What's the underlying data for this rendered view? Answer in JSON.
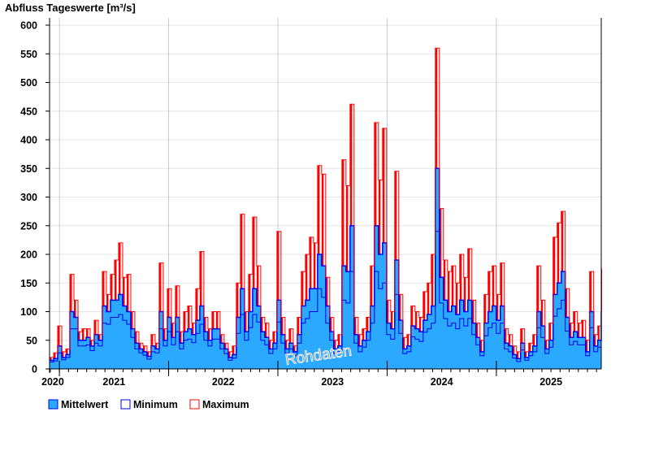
{
  "chart_data": {
    "type": "area",
    "title": "Abfluss Tageswerte [m³/s]",
    "xlabel": "",
    "ylabel": "Abfluss Tageswerte [m³/s]",
    "ylim": [
      0,
      610
    ],
    "yticks": [
      0,
      50,
      100,
      150,
      200,
      250,
      300,
      350,
      400,
      450,
      500,
      550,
      600
    ],
    "xlim": [
      2020.41,
      2025.46
    ],
    "x_start": 2020.41,
    "x_step_years": 0.03717,
    "xtick_labels": [
      {
        "label": "2020",
        "x": 2020.41
      },
      {
        "label": "2021",
        "x": 2021.0
      },
      {
        "label": "2022",
        "x": 2022.0
      },
      {
        "label": "2023",
        "x": 2023.0
      },
      {
        "label": "2024",
        "x": 2024.0
      },
      {
        "label": "2025",
        "x": 2025.0
      }
    ],
    "major_ticks": [
      2020.5,
      2021.5,
      2022.5,
      2023.5,
      2024.5
    ],
    "grid": true,
    "legend_position": "bottom-left",
    "watermark": "Rohdaten",
    "colors": {
      "mean_fill": "#2aa9ff",
      "mean_line": "#0000ff",
      "min": "#0000ee",
      "max": "#ff0000",
      "grid": "#e6e6e6"
    },
    "series": [
      {
        "name": "Mittelwert",
        "values": [
          15,
          18,
          40,
          20,
          25,
          100,
          90,
          50,
          50,
          55,
          40,
          60,
          50,
          110,
          100,
          120,
          120,
          130,
          110,
          100,
          70,
          45,
          35,
          30,
          22,
          40,
          35,
          100,
          50,
          90,
          55,
          90,
          45,
          65,
          70,
          60,
          85,
          110,
          65,
          50,
          70,
          70,
          45,
          35,
          20,
          25,
          90,
          140,
          65,
          100,
          140,
          110,
          65,
          55,
          35,
          45,
          120,
          60,
          35,
          45,
          30,
          60,
          110,
          120,
          140,
          140,
          200,
          180,
          110,
          65,
          35,
          40,
          180,
          170,
          250,
          60,
          40,
          50,
          65,
          110,
          250,
          200,
          220,
          80,
          70,
          190,
          85,
          35,
          40,
          75,
          70,
          65,
          85,
          95,
          110,
          350,
          160,
          120,
          100,
          110,
          95,
          120,
          100,
          120,
          80,
          55,
          30,
          80,
          100,
          110,
          85,
          110,
          45,
          40,
          25,
          18,
          45,
          20,
          30,
          40,
          100,
          75,
          35,
          50,
          130,
          150,
          170,
          90,
          55,
          65,
          55,
          55,
          30,
          100,
          40,
          50,
          100
        ]
      },
      {
        "name": "Minimum",
        "values": [
          12,
          14,
          28,
          16,
          20,
          70,
          70,
          40,
          40,
          42,
          32,
          45,
          40,
          80,
          78,
          90,
          90,
          95,
          85,
          78,
          55,
          35,
          28,
          24,
          17,
          30,
          28,
          70,
          40,
          65,
          42,
          65,
          35,
          50,
          52,
          46,
          62,
          78,
          50,
          40,
          52,
          52,
          35,
          27,
          15,
          19,
          62,
          95,
          50,
          72,
          95,
          82,
          50,
          42,
          27,
          35,
          82,
          45,
          27,
          35,
          23,
          45,
          80,
          88,
          100,
          100,
          140,
          125,
          80,
          50,
          27,
          30,
          120,
          115,
          170,
          45,
          30,
          38,
          50,
          80,
          170,
          140,
          150,
          60,
          52,
          130,
          62,
          27,
          30,
          56,
          52,
          48,
          64,
          70,
          80,
          240,
          115,
          88,
          75,
          80,
          70,
          88,
          75,
          88,
          60,
          42,
          23,
          58,
          72,
          80,
          62,
          80,
          35,
          30,
          19,
          13,
          33,
          15,
          23,
          30,
          72,
          55,
          27,
          38,
          92,
          105,
          120,
          66,
          42,
          48,
          42,
          42,
          23,
          72,
          30,
          38,
          75
        ]
      },
      {
        "name": "Maximum",
        "values": [
          20,
          28,
          75,
          30,
          35,
          165,
          120,
          65,
          70,
          70,
          50,
          85,
          60,
          170,
          130,
          165,
          190,
          220,
          160,
          165,
          100,
          65,
          45,
          40,
          30,
          60,
          45,
          185,
          70,
          140,
          80,
          145,
          65,
          100,
          110,
          80,
          140,
          205,
          90,
          70,
          100,
          100,
          60,
          45,
          30,
          40,
          150,
          270,
          100,
          165,
          265,
          180,
          90,
          80,
          50,
          65,
          240,
          90,
          50,
          70,
          40,
          90,
          170,
          200,
          230,
          220,
          355,
          340,
          160,
          90,
          50,
          60,
          365,
          320,
          462,
          90,
          60,
          70,
          90,
          180,
          430,
          330,
          420,
          120,
          100,
          345,
          130,
          55,
          60,
          110,
          100,
          90,
          135,
          150,
          200,
          560,
          280,
          190,
          170,
          180,
          150,
          200,
          160,
          210,
          120,
          80,
          50,
          130,
          170,
          180,
          130,
          185,
          70,
          60,
          40,
          30,
          70,
          30,
          45,
          60,
          180,
          120,
          50,
          80,
          230,
          255,
          275,
          140,
          80,
          100,
          80,
          85,
          50,
          170,
          60,
          75,
          175
        ]
      }
    ]
  }
}
